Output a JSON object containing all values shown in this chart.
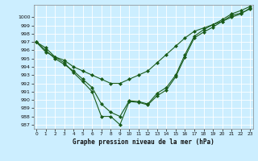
{
  "xlabel": "Graphe pression niveau de la mer (hPa)",
  "ylim": [
    986.5,
    1001.5
  ],
  "xlim": [
    -0.3,
    23.3
  ],
  "yticks": [
    987,
    988,
    989,
    990,
    991,
    992,
    993,
    994,
    995,
    996,
    997,
    998,
    999,
    1000
  ],
  "xticks": [
    0,
    1,
    2,
    3,
    4,
    5,
    6,
    7,
    8,
    9,
    10,
    11,
    12,
    13,
    14,
    15,
    16,
    17,
    18,
    19,
    20,
    21,
    22,
    23
  ],
  "bg_color": "#cceeff",
  "line_color": "#1a5c1a",
  "markersize": 2.0,
  "linewidth": 0.8,
  "series": [
    [
      997.0,
      996.3,
      995.2,
      994.5,
      993.3,
      992.2,
      991.0,
      988.0,
      988.0,
      987.0,
      989.8,
      989.7,
      989.4,
      990.5,
      991.2,
      992.8,
      995.2,
      997.5,
      998.2,
      998.8,
      999.5,
      1000.2,
      1000.5,
      1001.0
    ],
    [
      997.0,
      996.0,
      995.0,
      994.3,
      993.5,
      992.5,
      991.5,
      989.5,
      988.5,
      988.0,
      989.9,
      989.8,
      989.5,
      990.8,
      991.5,
      993.0,
      995.5,
      997.7,
      998.5,
      999.1,
      999.7,
      1000.4,
      1000.8,
      1001.3
    ],
    [
      997.0,
      995.8,
      995.2,
      994.8,
      994.0,
      993.5,
      993.0,
      992.5,
      992.0,
      992.0,
      992.5,
      993.0,
      993.5,
      994.5,
      995.5,
      996.5,
      997.5,
      998.3,
      998.7,
      999.1,
      999.5,
      1000.0,
      1000.4,
      1001.1
    ]
  ]
}
